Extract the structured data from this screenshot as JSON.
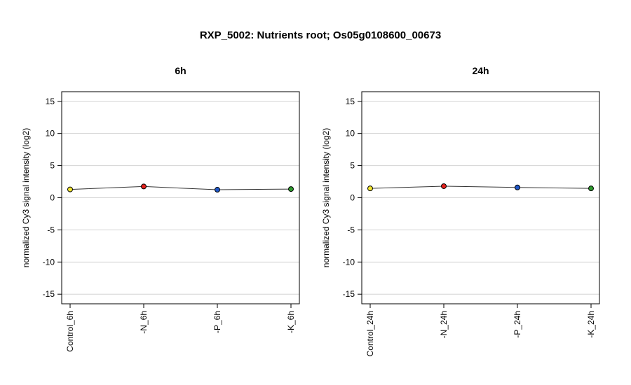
{
  "figure": {
    "title": "RXP_5002: Nutrients root; Os05g0108600_00673"
  },
  "chart_data": [
    {
      "type": "line",
      "title": "6h",
      "xlabel": "",
      "ylabel": "normalized Cy3 signal intensity (log2)",
      "categories": [
        "Control_6h",
        "-N_6h",
        "-P_6h",
        "-K_6h"
      ],
      "values": [
        1.3,
        1.75,
        1.25,
        1.35
      ],
      "point_colors": [
        "#f2e52e",
        "#e3211c",
        "#1f57c8",
        "#2e9a2e"
      ],
      "ylim": [
        -16.5,
        16.5
      ],
      "yticks": [
        -15,
        -10,
        -5,
        0,
        5,
        10,
        15
      ],
      "ytick_labels": [
        "-15",
        "-10",
        "-5",
        "0",
        "5",
        "10",
        "15"
      ],
      "grid": true,
      "legend": "none"
    },
    {
      "type": "line",
      "title": "24h",
      "xlabel": "",
      "ylabel": "normalized Cy3 signal intensity (log2)",
      "categories": [
        "Control_24h",
        "-N_24h",
        "-P_24h",
        "-K_24h"
      ],
      "values": [
        1.45,
        1.8,
        1.6,
        1.45
      ],
      "point_colors": [
        "#f2e52e",
        "#e3211c",
        "#1f57c8",
        "#2e9a2e"
      ],
      "ylim": [
        -16.5,
        16.5
      ],
      "yticks": [
        -15,
        -10,
        -5,
        0,
        5,
        10,
        15
      ],
      "ytick_labels": [
        "-15",
        "-10",
        "-5",
        "0",
        "5",
        "10",
        "15"
      ],
      "grid": true,
      "legend": "none"
    }
  ]
}
